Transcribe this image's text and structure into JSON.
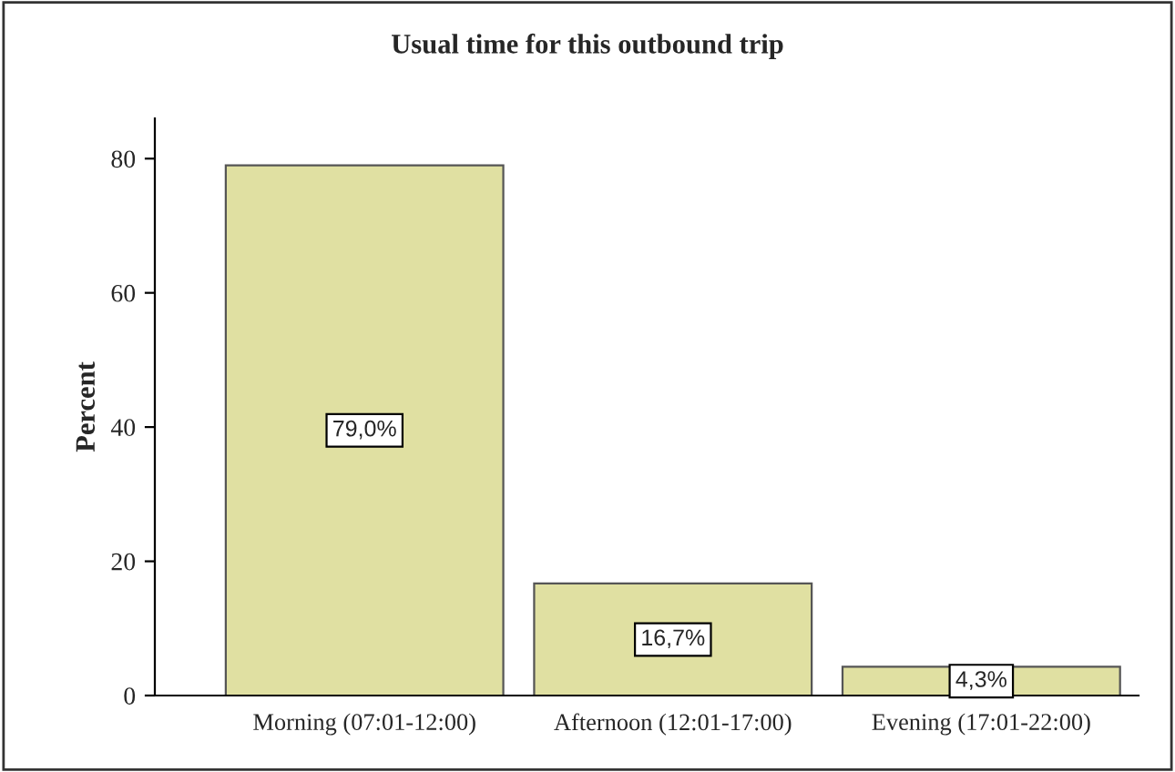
{
  "chart_data": {
    "type": "bar",
    "title": "Usual time for this outbound trip",
    "ylabel": "Percent",
    "categories": [
      "Morning (07:01-12:00)",
      "Afternoon (12:01-17:00)",
      "Evening (17:01-22:00)"
    ],
    "values": [
      79.0,
      16.7,
      4.3
    ],
    "value_labels": [
      "79,0%",
      "16,7%",
      "4,3%"
    ],
    "color": "#e0e0a2",
    "ylim": [
      0,
      86
    ],
    "yticks": [
      0,
      20,
      40,
      60,
      80
    ],
    "grid": false,
    "legend": false
  }
}
